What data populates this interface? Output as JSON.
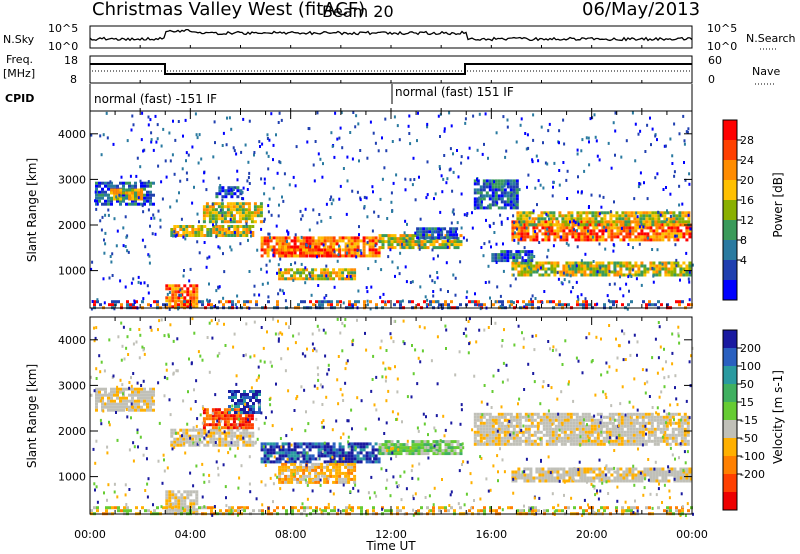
{
  "header": {
    "title": "Christmas Valley West (fitACF)",
    "beam": "Beam 20",
    "date": "06/May/2013"
  },
  "strips": {
    "nsky_label": "N.Sky",
    "nsearch_label": "N.Search",
    "nsky_ticks": [
      "10^5",
      "10^0"
    ],
    "nsky_right_ticks": [
      "10^5",
      "10^0"
    ],
    "freq_label_1": "Freq.",
    "freq_label_2": "[MHz]",
    "freq_ticks": [
      "18",
      "8"
    ],
    "nave_label": "Nave",
    "nave_ticks": [
      "60",
      "0"
    ],
    "cpid_label": "CPID",
    "cpid_1": "normal (fast) -151 IF",
    "cpid_2": "normal (fast) 151 IF"
  },
  "colorbars": {
    "power": {
      "label": "Power [dB]",
      "ticks": [
        "28",
        "24",
        "20",
        "16",
        "12",
        "8",
        "4"
      ],
      "colors": [
        "#ff0000",
        "#ff4000",
        "#ff8c00",
        "#ffc000",
        "#8ab000",
        "#3a9a5a",
        "#2a7aa0",
        "#2040b0",
        "#0000ff"
      ]
    },
    "velocity": {
      "label": "Velocity [m s-1]",
      "ticks": [
        "200",
        "100",
        "50",
        "15",
        "-15",
        "-50",
        "-100",
        "-200"
      ],
      "colors": [
        "#1a1aa0",
        "#2a60c0",
        "#2a9aa0",
        "#40b060",
        "#66cc33",
        "#c0c0b8",
        "#ffb000",
        "#ff8000",
        "#ff4000",
        "#ee0000"
      ]
    }
  },
  "chart_data": [
    {
      "type": "heatmap",
      "name": "power",
      "ylabel": "Slant Range [km]",
      "yticks": [
        "4000",
        "3000",
        "2000",
        "1000"
      ],
      "ylim": [
        180,
        4500
      ],
      "xlim": [
        0,
        24
      ],
      "bands": [
        {
          "t0": 0.2,
          "t1": 2.5,
          "r0": 2450,
          "r1": 2950,
          "class": "weak"
        },
        {
          "t0": 0.8,
          "t1": 2.0,
          "r0": 2600,
          "r1": 2800,
          "class": "mid"
        },
        {
          "t0": 3.0,
          "t1": 4.3,
          "r0": 200,
          "r1": 700,
          "class": "strong"
        },
        {
          "t0": 3.2,
          "t1": 6.5,
          "r0": 1750,
          "r1": 2000,
          "class": "mid"
        },
        {
          "t0": 4.5,
          "t1": 6.8,
          "r0": 2100,
          "r1": 2500,
          "class": "mid"
        },
        {
          "t0": 5.0,
          "t1": 6.0,
          "r0": 2600,
          "r1": 2850,
          "class": "weak"
        },
        {
          "t0": 6.8,
          "t1": 11.5,
          "r0": 1350,
          "r1": 1750,
          "class": "strong"
        },
        {
          "t0": 7.5,
          "t1": 10.0,
          "r0": 1300,
          "r1": 1550,
          "class": "strong"
        },
        {
          "t0": 7.5,
          "t1": 10.5,
          "r0": 850,
          "r1": 1050,
          "class": "mid"
        },
        {
          "t0": 11.5,
          "t1": 14.8,
          "r0": 1500,
          "r1": 1800,
          "class": "mid"
        },
        {
          "t0": 13.0,
          "t1": 14.6,
          "r0": 1750,
          "r1": 1950,
          "class": "weak"
        },
        {
          "t0": 15.3,
          "t1": 17.0,
          "r0": 2400,
          "r1": 3000,
          "class": "weak"
        },
        {
          "t0": 16.8,
          "t1": 23.9,
          "r0": 1700,
          "r1": 2100,
          "class": "strong"
        },
        {
          "t0": 17.0,
          "t1": 23.9,
          "r0": 2000,
          "r1": 2300,
          "class": "mid"
        },
        {
          "t0": 16.8,
          "t1": 23.9,
          "r0": 900,
          "r1": 1200,
          "class": "mid"
        },
        {
          "t0": 16.0,
          "t1": 17.6,
          "r0": 1200,
          "r1": 1450,
          "class": "weak"
        },
        {
          "t0": 0.0,
          "t1": 24.0,
          "r0": 190,
          "r1": 350,
          "class": "floor"
        }
      ]
    },
    {
      "type": "heatmap",
      "name": "velocity",
      "ylabel": "Slant Range [km]",
      "yticks": [
        "4000",
        "3000",
        "2000",
        "1000"
      ],
      "ylim": [
        180,
        4500
      ],
      "xlim": [
        0,
        24
      ],
      "xticks": [
        "00:00",
        "04:00",
        "08:00",
        "12:00",
        "16:00",
        "20:00",
        "00:00"
      ],
      "xlabel": "Time UT",
      "bands": [
        {
          "t0": 0.2,
          "t1": 2.5,
          "r0": 2450,
          "r1": 2950,
          "class": "gray"
        },
        {
          "t0": 3.0,
          "t1": 4.3,
          "r0": 200,
          "r1": 700,
          "class": "gray"
        },
        {
          "t0": 3.2,
          "t1": 6.5,
          "r0": 1700,
          "r1": 2050,
          "class": "gray"
        },
        {
          "t0": 4.5,
          "t1": 6.5,
          "r0": 2100,
          "r1": 2500,
          "class": "red"
        },
        {
          "t0": 5.5,
          "t1": 6.8,
          "r0": 2400,
          "r1": 2900,
          "class": "blue"
        },
        {
          "t0": 6.8,
          "t1": 11.5,
          "r0": 1350,
          "r1": 1750,
          "class": "blue"
        },
        {
          "t0": 7.5,
          "t1": 10.5,
          "r0": 850,
          "r1": 1300,
          "class": "orange"
        },
        {
          "t0": 11.5,
          "t1": 14.8,
          "r0": 1500,
          "r1": 1800,
          "class": "green"
        },
        {
          "t0": 15.3,
          "t1": 23.9,
          "r0": 1700,
          "r1": 2400,
          "class": "gray"
        },
        {
          "t0": 16.8,
          "t1": 23.9,
          "r0": 900,
          "r1": 1200,
          "class": "gray"
        },
        {
          "t0": 0.0,
          "t1": 24.0,
          "r0": 190,
          "r1": 350,
          "class": "floor"
        }
      ]
    }
  ]
}
